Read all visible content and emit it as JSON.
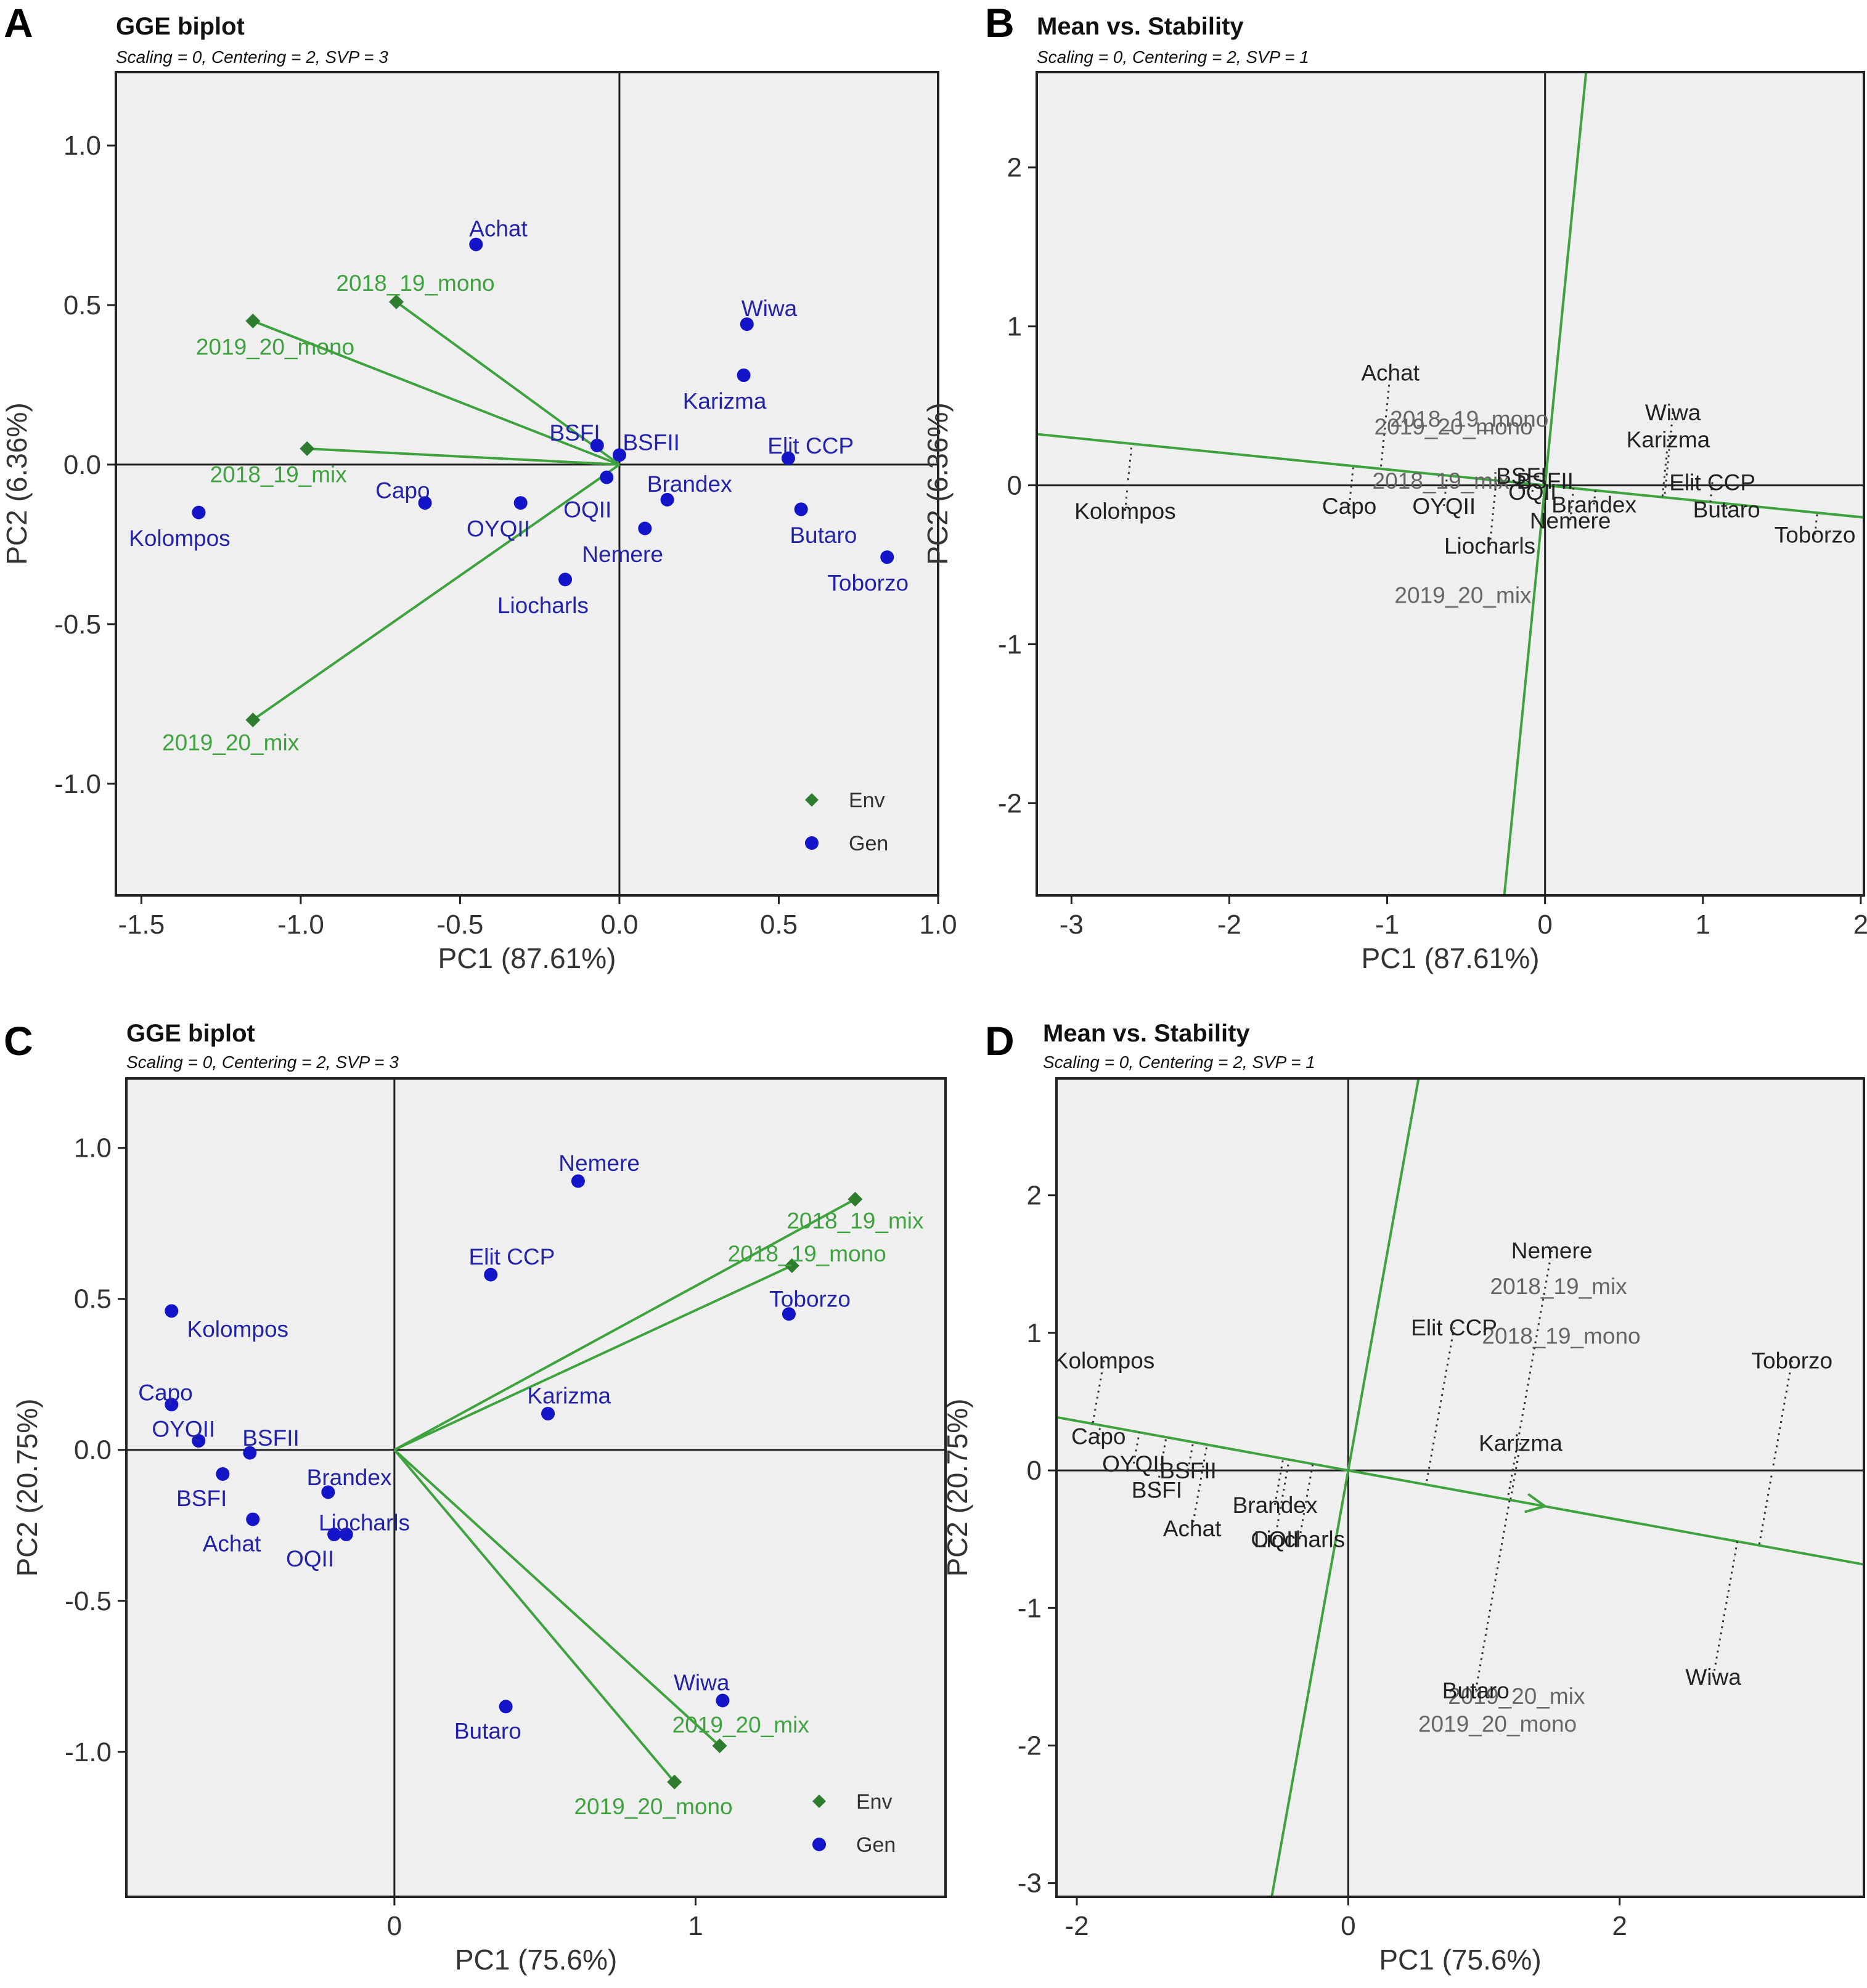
{
  "colors": {
    "gen": "#1414c8",
    "env": "#2e7d2e",
    "env_text": "#3ea33e",
    "ms_axis": "#3ea33e"
  },
  "chart_data": [
    {
      "panel": "A",
      "type": "scatter",
      "title": "GGE biplot",
      "subtitle": "Scaling = 0, Centering = 2, SVP = 3",
      "xlabel": "PC1 (87.61%)",
      "ylabel": "PC2 (6.36%)",
      "xlim": [
        -1.58,
        1.0
      ],
      "ylim": [
        -1.35,
        1.23
      ],
      "xticks": [
        -1.5,
        -1.0,
        -0.5,
        0.0,
        0.5,
        1.0
      ],
      "xtick_labels": [
        "-1.5",
        "-1.0",
        "-0.5",
        "0.0",
        "0.5",
        "1.0"
      ],
      "yticks": [
        -1.0,
        -0.5,
        0.0,
        0.5,
        1.0
      ],
      "ytick_labels": [
        "-1.0",
        "-0.5",
        "0.0",
        "0.5",
        "1.0"
      ],
      "legend": {
        "position": "bottom-right",
        "entries": [
          "Env",
          "Gen"
        ]
      },
      "env_vectors": true,
      "environments": [
        {
          "name": "2018_19_mono",
          "x": -0.7,
          "y": 0.51,
          "lx": -0.64,
          "ly": 0.57
        },
        {
          "name": "2019_20_mono",
          "x": -1.15,
          "y": 0.45,
          "lx": -1.08,
          "ly": 0.37
        },
        {
          "name": "2018_19_mix",
          "x": -0.98,
          "y": 0.05,
          "lx": -1.07,
          "ly": -0.03
        },
        {
          "name": "2019_20_mix",
          "x": -1.15,
          "y": -0.8,
          "lx": -1.22,
          "ly": -0.87
        }
      ],
      "genotypes": [
        {
          "name": "Achat",
          "x": -0.45,
          "y": 0.69,
          "lx": -0.38,
          "ly": 0.74
        },
        {
          "name": "Wiwa",
          "x": 0.4,
          "y": 0.44,
          "lx": 0.47,
          "ly": 0.49
        },
        {
          "name": "Karizma",
          "x": 0.39,
          "y": 0.28,
          "lx": 0.33,
          "ly": 0.2
        },
        {
          "name": "BSFI",
          "x": -0.07,
          "y": 0.06,
          "lx": -0.14,
          "ly": 0.1
        },
        {
          "name": "BSFII",
          "x": 0.0,
          "y": 0.03,
          "lx": 0.1,
          "ly": 0.07
        },
        {
          "name": "Elit CCP",
          "x": 0.53,
          "y": 0.02,
          "lx": 0.6,
          "ly": 0.06
        },
        {
          "name": "Capo",
          "x": -0.61,
          "y": -0.12,
          "lx": -0.68,
          "ly": -0.08
        },
        {
          "name": "OYQII",
          "x": -0.31,
          "y": -0.12,
          "lx": -0.38,
          "ly": -0.2
        },
        {
          "name": "OQII",
          "x": -0.04,
          "y": -0.04,
          "lx": -0.1,
          "ly": -0.14
        },
        {
          "name": "Brandex",
          "x": 0.15,
          "y": -0.11,
          "lx": 0.22,
          "ly": -0.06
        },
        {
          "name": "Butaro",
          "x": 0.57,
          "y": -0.14,
          "lx": 0.64,
          "ly": -0.22
        },
        {
          "name": "Nemere",
          "x": 0.08,
          "y": -0.2,
          "lx": 0.01,
          "ly": -0.28
        },
        {
          "name": "Liocharls",
          "x": -0.17,
          "y": -0.36,
          "lx": -0.24,
          "ly": -0.44
        },
        {
          "name": "Toborzo",
          "x": 0.84,
          "y": -0.29,
          "lx": 0.78,
          "ly": -0.37
        },
        {
          "name": "Kolompos",
          "x": -1.32,
          "y": -0.15,
          "lx": -1.38,
          "ly": -0.23
        }
      ]
    },
    {
      "panel": "B",
      "type": "scatter",
      "title": "Mean vs. Stability",
      "subtitle": "Scaling = 0, Centering = 2, SVP = 1",
      "xlabel": "PC1 (87.61%)",
      "ylabel": "PC2 (6.36%)",
      "xlim": [
        -3.22,
        2.02
      ],
      "ylim": [
        -2.58,
        2.6
      ],
      "xticks": [
        -3,
        -2,
        -1,
        0,
        1,
        2
      ],
      "xtick_labels": [
        "-3",
        "-2",
        "-1",
        "0",
        "1",
        "2"
      ],
      "yticks": [
        -2,
        -1,
        0,
        1,
        2
      ],
      "yticks_labels_note": "",
      "ytick_labels": [
        "-2",
        "-1",
        "0",
        "1",
        "2"
      ],
      "ms_axes": {
        "mean_slope": -0.1,
        "stability_slope": 10
      },
      "environments": [
        {
          "name": "2018_19_mono",
          "x": -0.48,
          "y": 0.42
        },
        {
          "name": "2019_20_mono",
          "x": -0.58,
          "y": 0.37
        },
        {
          "name": "2018_19_mix",
          "x": -0.66,
          "y": 0.03
        },
        {
          "name": "2019_20_mix",
          "x": -0.52,
          "y": -0.69
        }
      ],
      "genotypes": [
        {
          "name": "Achat",
          "x": -0.98,
          "y": 0.71
        },
        {
          "name": "Wiwa",
          "x": 0.81,
          "y": 0.46
        },
        {
          "name": "Karizma",
          "x": 0.78,
          "y": 0.29
        },
        {
          "name": "BSFI",
          "x": -0.15,
          "y": 0.06
        },
        {
          "name": "BSFII",
          "x": 0.0,
          "y": 0.03
        },
        {
          "name": "Elit CCP",
          "x": 1.06,
          "y": 0.02
        },
        {
          "name": "Capo",
          "x": -1.24,
          "y": -0.13
        },
        {
          "name": "OYQII",
          "x": -0.64,
          "y": -0.13
        },
        {
          "name": "OQII",
          "x": -0.08,
          "y": -0.04
        },
        {
          "name": "Brandex",
          "x": 0.31,
          "y": -0.12
        },
        {
          "name": "Butaro",
          "x": 1.15,
          "y": -0.15
        },
        {
          "name": "Nemere",
          "x": 0.16,
          "y": -0.22
        },
        {
          "name": "Liocharls",
          "x": -0.35,
          "y": -0.38
        },
        {
          "name": "Toborzo",
          "x": 1.71,
          "y": -0.31
        },
        {
          "name": "Kolompos",
          "x": -2.66,
          "y": -0.16
        }
      ]
    },
    {
      "panel": "C",
      "type": "scatter",
      "title": "GGE biplot",
      "subtitle": "Scaling = 0, Centering = 2, SVP = 3",
      "xlabel": "PC1 (75.6%)",
      "ylabel": "PC2 (20.75%)",
      "xlim": [
        -0.89,
        1.83
      ],
      "ylim": [
        -1.48,
        1.23
      ],
      "xticks": [
        0,
        1
      ],
      "xtick_labels": [
        "0",
        "1"
      ],
      "yticks": [
        -1.0,
        -0.5,
        0.0,
        0.5,
        1.0
      ],
      "ytick_labels": [
        "-1.0",
        "-0.5",
        "0.0",
        "0.5",
        "1.0"
      ],
      "legend": {
        "position": "bottom-right",
        "entries": [
          "Env",
          "Gen"
        ]
      },
      "env_vectors": true,
      "environments": [
        {
          "name": "2018_19_mix",
          "x": 1.53,
          "y": 0.83,
          "lx": 1.53,
          "ly": 0.76
        },
        {
          "name": "2018_19_mono",
          "x": 1.32,
          "y": 0.61,
          "lx": 1.37,
          "ly": 0.65
        },
        {
          "name": "2019_20_mix",
          "x": 1.08,
          "y": -0.98,
          "lx": 1.15,
          "ly": -0.91
        },
        {
          "name": "2019_20_mono",
          "x": 0.93,
          "y": -1.1,
          "lx": 0.86,
          "ly": -1.18
        }
      ],
      "genotypes": [
        {
          "name": "Nemere",
          "x": 0.61,
          "y": 0.89,
          "lx": 0.68,
          "ly": 0.95
        },
        {
          "name": "Elit CCP",
          "x": 0.32,
          "y": 0.58,
          "lx": 0.39,
          "ly": 0.64
        },
        {
          "name": "Toborzo",
          "x": 1.31,
          "y": 0.45,
          "lx": 1.38,
          "ly": 0.5
        },
        {
          "name": "Karizma",
          "x": 0.51,
          "y": 0.12,
          "lx": 0.58,
          "ly": 0.18
        },
        {
          "name": "Kolompos",
          "x": -0.74,
          "y": 0.46,
          "lx": -0.52,
          "ly": 0.4
        },
        {
          "name": "Capo",
          "x": -0.74,
          "y": 0.15,
          "lx": -0.76,
          "ly": 0.19
        },
        {
          "name": "OYQII",
          "x": -0.65,
          "y": 0.03,
          "lx": -0.7,
          "ly": 0.07
        },
        {
          "name": "BSFII",
          "x": -0.48,
          "y": -0.01,
          "lx": -0.41,
          "ly": 0.04
        },
        {
          "name": "BSFI",
          "x": -0.57,
          "y": -0.08,
          "lx": -0.64,
          "ly": -0.16
        },
        {
          "name": "Brandex",
          "x": -0.22,
          "y": -0.14,
          "lx": -0.15,
          "ly": -0.09
        },
        {
          "name": "Achat",
          "x": -0.47,
          "y": -0.23,
          "lx": -0.54,
          "ly": -0.31
        },
        {
          "name": "Liocharls",
          "x": -0.16,
          "y": -0.28,
          "lx": -0.1,
          "ly": -0.24
        },
        {
          "name": "OQII",
          "x": -0.2,
          "y": -0.28,
          "lx": -0.28,
          "ly": -0.36
        },
        {
          "name": "Wiwa",
          "x": 1.09,
          "y": -0.83,
          "lx": 1.02,
          "ly": -0.77
        },
        {
          "name": "Butaro",
          "x": 0.37,
          "y": -0.85,
          "lx": 0.31,
          "ly": -0.93
        }
      ]
    },
    {
      "panel": "D",
      "type": "scatter",
      "title": "Mean vs. Stability",
      "subtitle": "Scaling = 0, Centering = 2, SVP = 1",
      "xlabel": "PC1 (75.6%)",
      "ylabel": "PC2 (20.75%)",
      "xlim": [
        -2.15,
        3.8
      ],
      "ylim": [
        -3.1,
        2.85
      ],
      "xticks": [
        -2,
        0,
        2
      ],
      "xtick_labels": [
        "-2",
        "0",
        "2"
      ],
      "yticks": [
        -3,
        -2,
        -1,
        0,
        1,
        2
      ],
      "ytick_labels": [
        "-3",
        "-2",
        "-1",
        "0",
        "1",
        "2"
      ],
      "ms_axes": {
        "mean_slope": -0.18,
        "stability_slope": 5.5,
        "arrow_x": 1.45
      },
      "environments": [
        {
          "name": "2018_19_mix",
          "x": 1.55,
          "y": 1.34
        },
        {
          "name": "2018_19_mono",
          "x": 1.57,
          "y": 0.98
        },
        {
          "name": "2019_20_mix",
          "x": 1.24,
          "y": -1.64
        },
        {
          "name": "2019_20_mono",
          "x": 1.1,
          "y": -1.84
        }
      ],
      "genotypes": [
        {
          "name": "Nemere",
          "x": 1.5,
          "y": 1.6
        },
        {
          "name": "Elit CCP",
          "x": 0.78,
          "y": 1.04
        },
        {
          "name": "Toborzo",
          "x": 3.27,
          "y": 0.8
        },
        {
          "name": "Kolompos",
          "x": -1.8,
          "y": 0.8
        },
        {
          "name": "Karizma",
          "x": 1.27,
          "y": 0.2
        },
        {
          "name": "Capo",
          "x": -1.84,
          "y": 0.25
        },
        {
          "name": "OYQII",
          "x": -1.58,
          "y": 0.05
        },
        {
          "name": "BSFII",
          "x": -1.18,
          "y": 0.0
        },
        {
          "name": "BSFI",
          "x": -1.41,
          "y": -0.14
        },
        {
          "name": "Brandex",
          "x": -0.54,
          "y": -0.25
        },
        {
          "name": "Achat",
          "x": -1.15,
          "y": -0.42
        },
        {
          "name": "Liocharls",
          "x": -0.36,
          "y": -0.5
        },
        {
          "name": "OQII",
          "x": -0.54,
          "y": -0.5
        },
        {
          "name": "Butaro",
          "x": 0.94,
          "y": -1.6
        },
        {
          "name": "Wiwa",
          "x": 2.69,
          "y": -1.5
        }
      ]
    }
  ]
}
